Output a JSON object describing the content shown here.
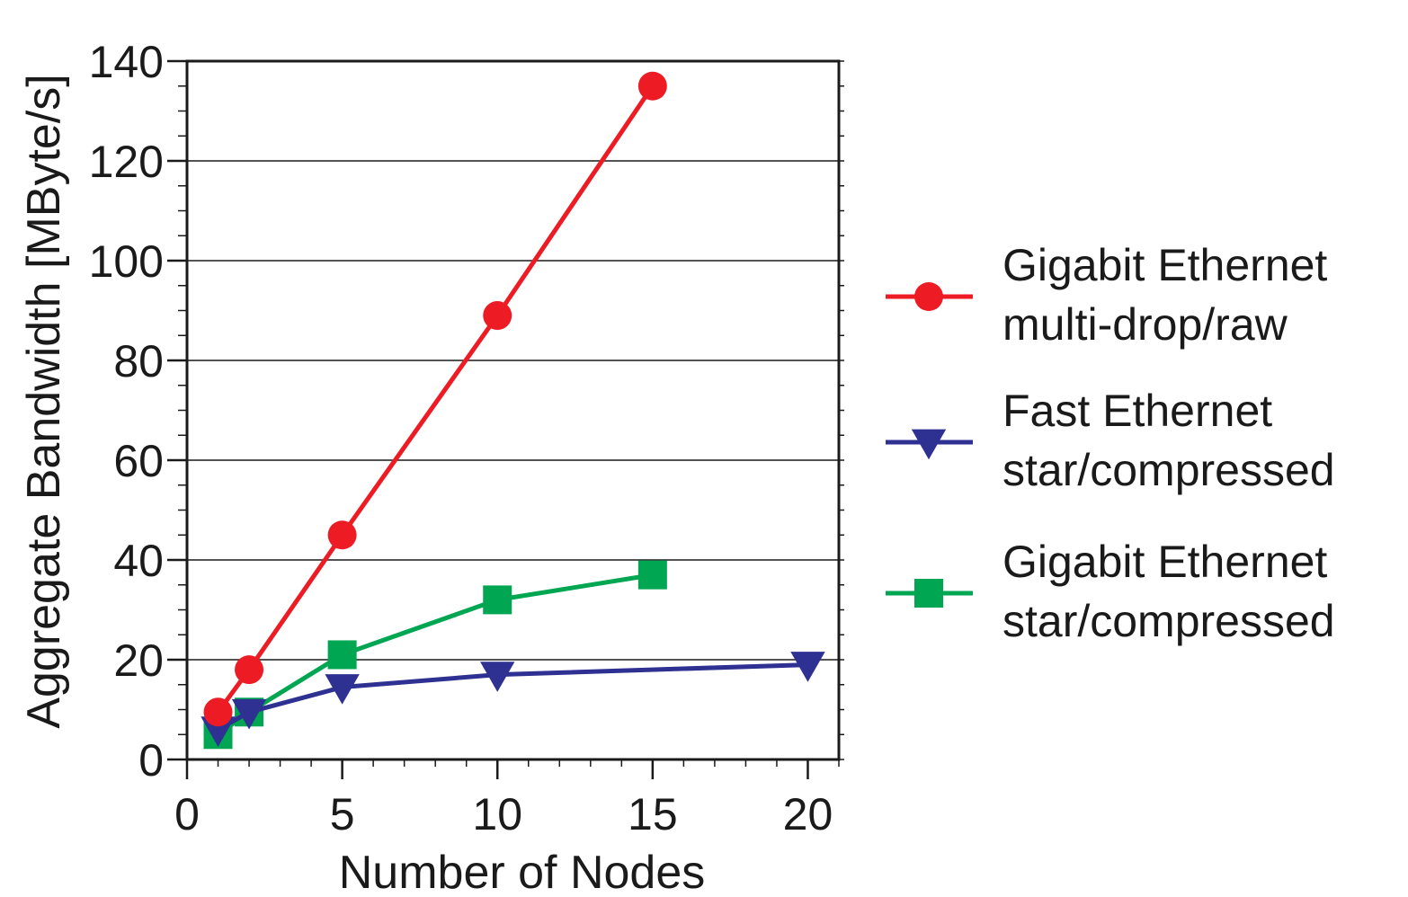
{
  "chart_data": {
    "type": "line",
    "title": "",
    "xlabel": "Number of Nodes",
    "ylabel": "Aggregate Bandwidth [MByte/s]",
    "xlim": [
      0,
      21
    ],
    "ylim": [
      0,
      140
    ],
    "xticks": [
      0,
      5,
      10,
      15,
      20
    ],
    "yticks": [
      0,
      20,
      40,
      60,
      80,
      100,
      120,
      140
    ],
    "grid": "horizontal",
    "legend_position": "right",
    "series": [
      {
        "name_lines": [
          "Gigabit Ethernet",
          "multi-drop/raw"
        ],
        "color": "#ed1c24",
        "marker": "circle",
        "x": [
          1,
          2,
          5,
          10,
          15
        ],
        "y": [
          9.5,
          18,
          45,
          89,
          135
        ]
      },
      {
        "name_lines": [
          "Fast Ethernet",
          "star/compressed"
        ],
        "color": "#2e3192",
        "marker": "triangle-down",
        "x": [
          1,
          2,
          5,
          10,
          20
        ],
        "y": [
          6,
          9.5,
          14.5,
          17,
          19
        ]
      },
      {
        "name_lines": [
          "Gigabit Ethernet",
          "star/compressed"
        ],
        "color": "#00a651",
        "marker": "square",
        "x": [
          1,
          2,
          5,
          10,
          15
        ],
        "y": [
          5,
          9.5,
          21,
          32,
          37
        ]
      }
    ]
  }
}
